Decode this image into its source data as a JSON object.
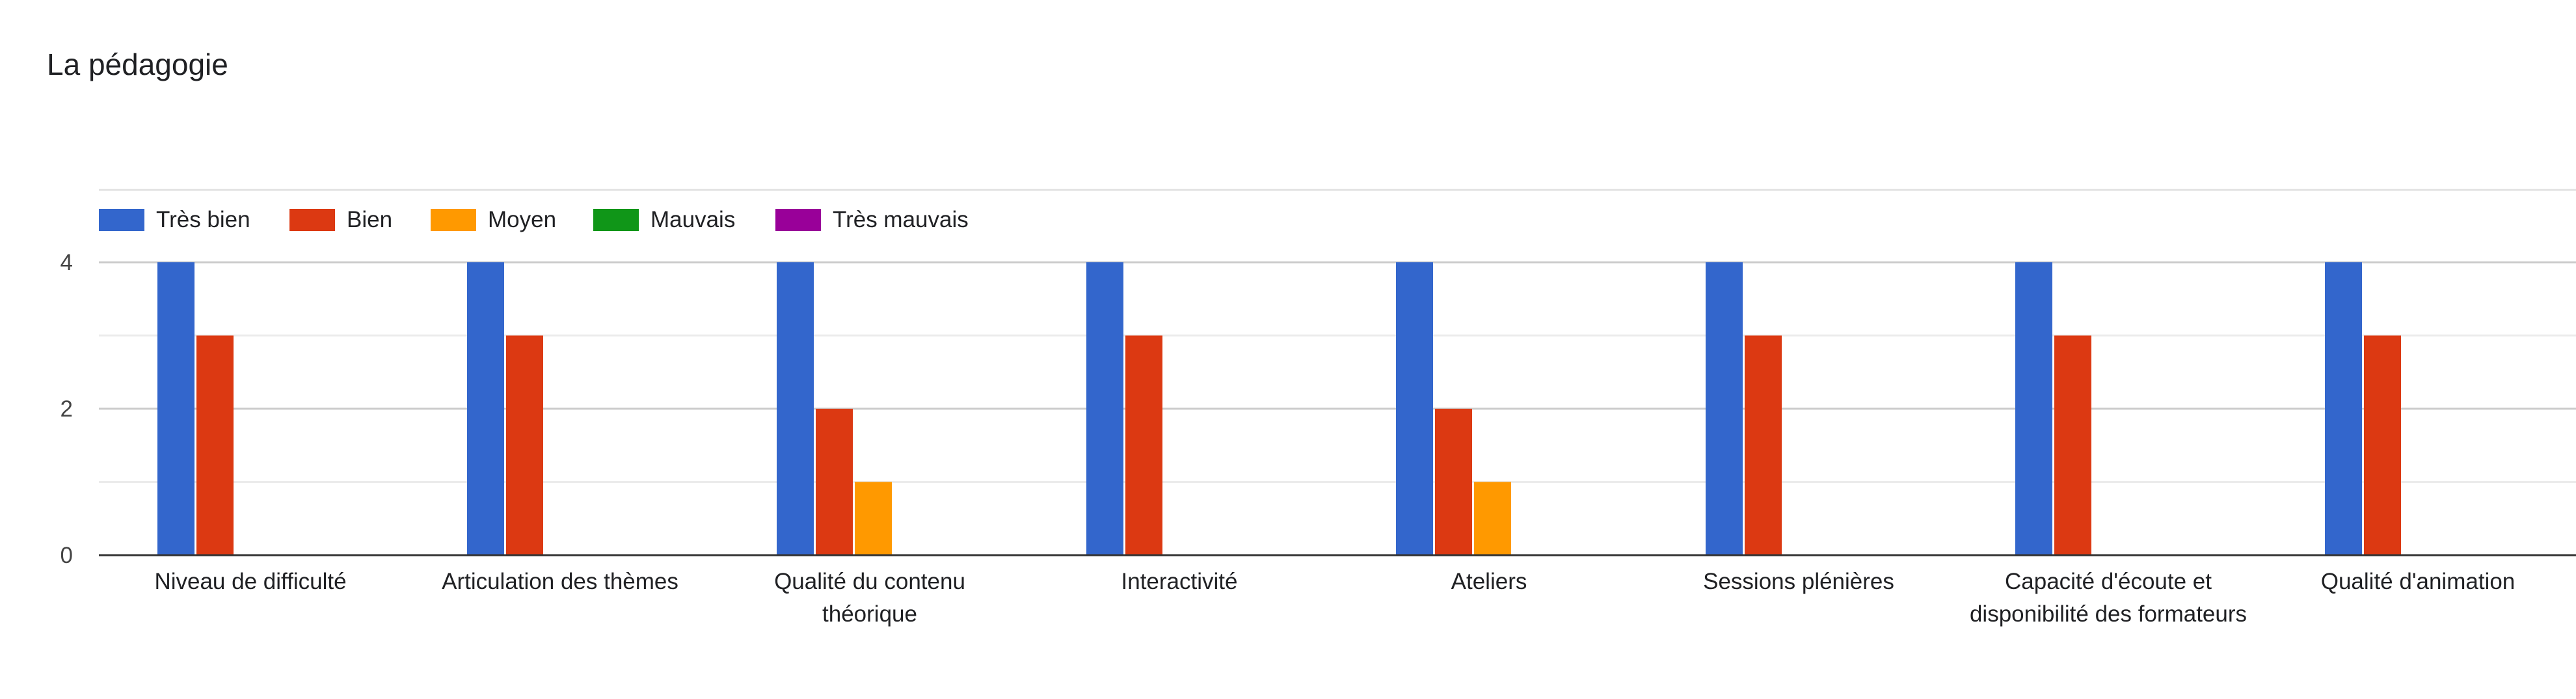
{
  "title": "La pédagogie",
  "colors": {
    "tres_bien": "#3366cc",
    "bien": "#dc3912",
    "moyen": "#ff9900",
    "mauvais": "#109618",
    "tres_mauvais": "#990099"
  },
  "chart_data": {
    "type": "bar",
    "title": "La pédagogie",
    "categories": [
      [
        "Niveau de difficulté"
      ],
      [
        "Articulation des thèmes"
      ],
      [
        "Qualité du contenu",
        "théorique"
      ],
      [
        "Interactivité"
      ],
      [
        "Ateliers"
      ],
      [
        "Sessions plénières"
      ],
      [
        "Capacité d'écoute et",
        "disponibilité des formateurs"
      ],
      [
        "Qualité d'animation"
      ]
    ],
    "series": [
      {
        "name": "Très bien",
        "color": "#3366cc",
        "values": [
          4,
          4,
          4,
          4,
          4,
          4,
          4,
          4
        ]
      },
      {
        "name": "Bien",
        "color": "#dc3912",
        "values": [
          3,
          3,
          2,
          3,
          2,
          3,
          3,
          3
        ]
      },
      {
        "name": "Moyen",
        "color": "#ff9900",
        "values": [
          0,
          0,
          1,
          0,
          1,
          0,
          0,
          0
        ]
      },
      {
        "name": "Mauvais",
        "color": "#109618",
        "values": [
          0,
          0,
          0,
          0,
          0,
          0,
          0,
          0
        ]
      },
      {
        "name": "Très mauvais",
        "color": "#990099",
        "values": [
          0,
          0,
          0,
          0,
          0,
          0,
          0,
          0
        ]
      }
    ],
    "y_ticks": [
      0,
      2,
      4
    ],
    "ylim": [
      0,
      4
    ],
    "grid": true,
    "legend_position": "top-left"
  }
}
